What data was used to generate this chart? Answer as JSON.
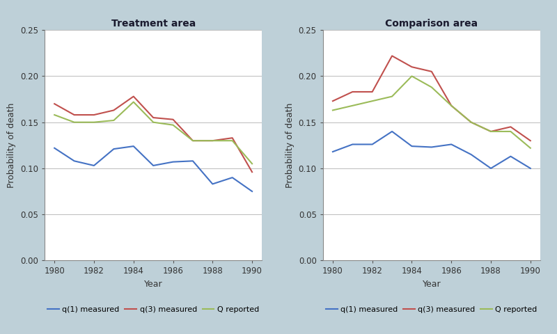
{
  "years": [
    1980,
    1981,
    1982,
    1983,
    1984,
    1985,
    1986,
    1987,
    1988,
    1989,
    1990
  ],
  "treatment": {
    "q1_measured": [
      0.122,
      0.108,
      0.103,
      0.121,
      0.124,
      0.103,
      0.107,
      0.108,
      0.083,
      0.09,
      0.075
    ],
    "q3_measured": [
      0.17,
      0.158,
      0.158,
      0.163,
      0.178,
      0.155,
      0.153,
      0.13,
      0.13,
      0.133,
      0.096
    ],
    "Q_reported": [
      0.158,
      0.15,
      0.15,
      0.152,
      0.172,
      0.15,
      0.147,
      0.13,
      0.13,
      0.13,
      0.105
    ]
  },
  "comparison": {
    "q1_measured": [
      0.118,
      0.126,
      0.126,
      0.14,
      0.124,
      0.123,
      0.126,
      0.115,
      0.1,
      0.113,
      0.1
    ],
    "q3_measured": [
      0.173,
      0.183,
      0.183,
      0.222,
      0.21,
      0.205,
      0.168,
      0.15,
      0.14,
      0.145,
      0.13
    ],
    "Q_reported": [
      0.163,
      0.168,
      0.173,
      0.178,
      0.2,
      0.188,
      0.168,
      0.15,
      0.14,
      0.14,
      0.122
    ]
  },
  "ylim": [
    0.0,
    0.25
  ],
  "yticks": [
    0.0,
    0.05,
    0.1,
    0.15,
    0.2,
    0.25
  ],
  "xticks": [
    1980,
    1982,
    1984,
    1986,
    1988,
    1990
  ],
  "ylabel": "Probability of death",
  "xlabel": "Year",
  "title_treatment": "Treatment area",
  "title_comparison": "Comparison area",
  "color_q1": "#4472C4",
  "color_q3": "#C0504D",
  "color_Q": "#9BBB59",
  "background_color": "#BED0D8",
  "plot_bg": "#FFFFFF",
  "legend_q1": "q(1) measured",
  "legend_q3": "q(3) measured",
  "legend_Q": "Q reported",
  "linewidth": 1.5,
  "grid_color": "#BBBBBB",
  "tick_color": "#555555",
  "title_color": "#1a1a2e"
}
